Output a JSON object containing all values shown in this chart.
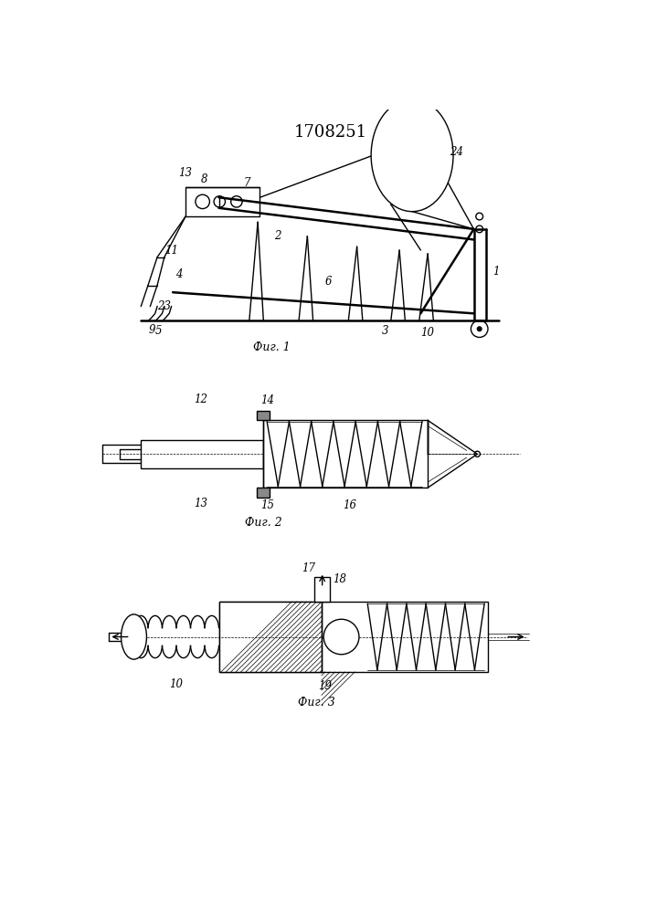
{
  "title": "1708251",
  "title_fontsize": 13,
  "fig1_caption": "Фиг. 1",
  "fig2_caption": "Фиг. 2",
  "fig3_caption": "Фиг. 3",
  "line_color": "#000000",
  "bg_color": "#ffffff",
  "line_width": 1.0,
  "thin_line": 0.5,
  "thick_line": 1.8
}
